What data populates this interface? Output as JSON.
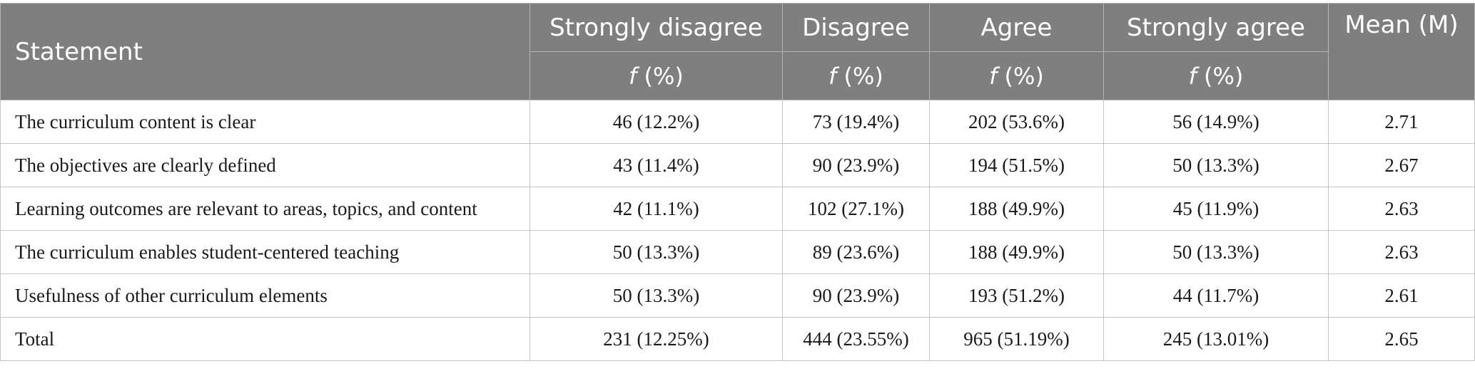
{
  "header": {
    "statement": "Statement",
    "strongly_disagree": "Strongly disagree",
    "disagree": "Disagree",
    "agree": "Agree",
    "strongly_agree": "Strongly agree",
    "mean": "Mean (M)",
    "sub_f": "f",
    "sub_pct": " (%)"
  },
  "rows": [
    {
      "statement": "The curriculum content is clear",
      "sd": "46 (12.2%)",
      "d": "73 (19.4%)",
      "a": "202 (53.6%)",
      "sa": "56 (14.9%)",
      "mean": "2.71"
    },
    {
      "statement": "The objectives are clearly defined",
      "sd": "43 (11.4%)",
      "d": "90 (23.9%)",
      "a": "194 (51.5%)",
      "sa": "50 (13.3%)",
      "mean": "2.67"
    },
    {
      "statement": "Learning outcomes are relevant to areas, topics, and content",
      "sd": "42 (11.1%)",
      "d": "102 (27.1%)",
      "a": "188 (49.9%)",
      "sa": "45 (11.9%)",
      "mean": "2.63"
    },
    {
      "statement": "The curriculum enables student-centered teaching",
      "sd": "50 (13.3%)",
      "d": "89 (23.6%)",
      "a": "188 (49.9%)",
      "sa": "50 (13.3%)",
      "mean": "2.63"
    },
    {
      "statement": "Usefulness of other curriculum elements",
      "sd": "50 (13.3%)",
      "d": "90 (23.9%)",
      "a": "193 (51.2%)",
      "sa": "44 (11.7%)",
      "mean": "2.61"
    },
    {
      "statement": "Total",
      "sd": "231 (12.25%)",
      "d": "444 (23.55%)",
      "a": "965 (51.19%)",
      "sa": "245 (13.01%)",
      "mean": "2.65"
    }
  ]
}
